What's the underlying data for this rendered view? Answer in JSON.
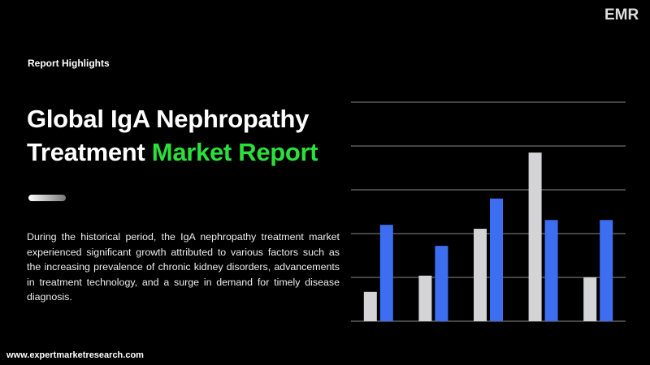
{
  "header": {
    "label": "Report Highlights",
    "title_line1": "Global IgA Nephropathy",
    "title_line2": "Treatment",
    "title_highlight": "Market Report"
  },
  "description": "During the historical period, the IgA nephropathy treatment market experienced significant growth attributed to various factors such as the increasing prevalence of chronic kidney disorders, advancements in treatment technology, and a surge in demand for timely disease diagnosis.",
  "footer": {
    "website": "www.expertmarketresearch.com"
  },
  "logo": {
    "text": "EMR"
  },
  "chart_data": {
    "type": "bar",
    "categories": [
      null,
      null,
      null,
      null,
      null
    ],
    "series": [
      {
        "color": "#d4d4d6",
        "values": [
          0.67,
          1.04,
          2.11,
          3.85,
          1.0
        ]
      },
      {
        "color": "#3d6ef2",
        "values": [
          2.2,
          1.72,
          2.8,
          2.31,
          2.31
        ]
      }
    ],
    "ylim": [
      0,
      5
    ],
    "yticks": [
      0,
      1,
      2,
      3,
      4,
      5
    ],
    "grid": true
  }
}
